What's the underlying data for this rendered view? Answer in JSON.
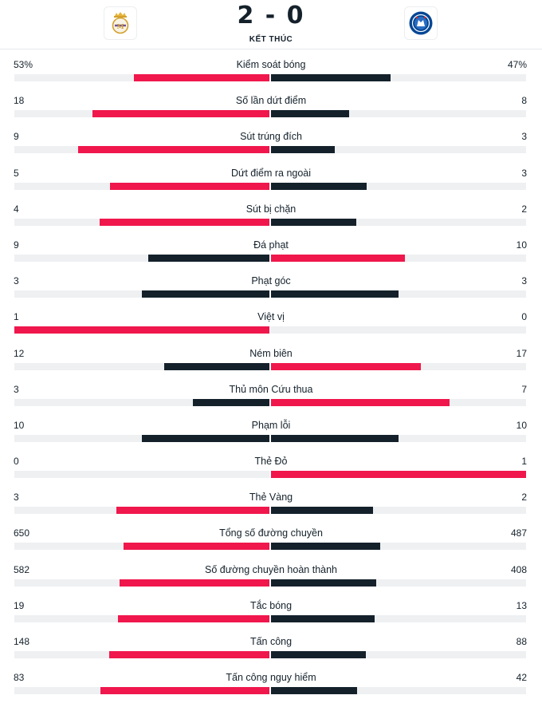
{
  "match": {
    "score": "2 - 0",
    "status": "KẾT THÚC",
    "home_crest_icon": "real-madrid-crest-icon",
    "away_crest_icon": "chelsea-crest-icon"
  },
  "colors": {
    "highlight": "#f0174c",
    "normal": "#14212b",
    "track": "#eef0f2"
  },
  "stats": [
    {
      "label": "Kiểm soát bóng",
      "home": "53%",
      "away": "47%",
      "home_share": 0.53,
      "away_share": 0.47
    },
    {
      "label": "Số lần dứt điểm",
      "home": "18",
      "away": "8"
    },
    {
      "label": "Sút trúng đích",
      "home": "9",
      "away": "3"
    },
    {
      "label": "Dứt điểm ra ngoài",
      "home": "5",
      "away": "3"
    },
    {
      "label": "Sút bị chặn",
      "home": "4",
      "away": "2"
    },
    {
      "label": "Đá phạt",
      "home": "9",
      "away": "10"
    },
    {
      "label": "Phạt góc",
      "home": "3",
      "away": "3"
    },
    {
      "label": "Việt vị",
      "home": "1",
      "away": "0"
    },
    {
      "label": "Ném biên",
      "home": "12",
      "away": "17"
    },
    {
      "label": "Thủ môn Cứu thua",
      "home": "3",
      "away": "7"
    },
    {
      "label": "Phạm lỗi",
      "home": "10",
      "away": "10"
    },
    {
      "label": "Thẻ Đỏ",
      "home": "0",
      "away": "1"
    },
    {
      "label": "Thẻ Vàng",
      "home": "3",
      "away": "2"
    },
    {
      "label": "Tổng số đường chuyền",
      "home": "650",
      "away": "487"
    },
    {
      "label": "Số đường chuyền hoàn thành",
      "home": "582",
      "away": "408"
    },
    {
      "label": "Tắc bóng",
      "home": "19",
      "away": "13"
    },
    {
      "label": "Tấn công",
      "home": "148",
      "away": "88"
    },
    {
      "label": "Tấn công nguy hiểm",
      "home": "83",
      "away": "42"
    }
  ]
}
